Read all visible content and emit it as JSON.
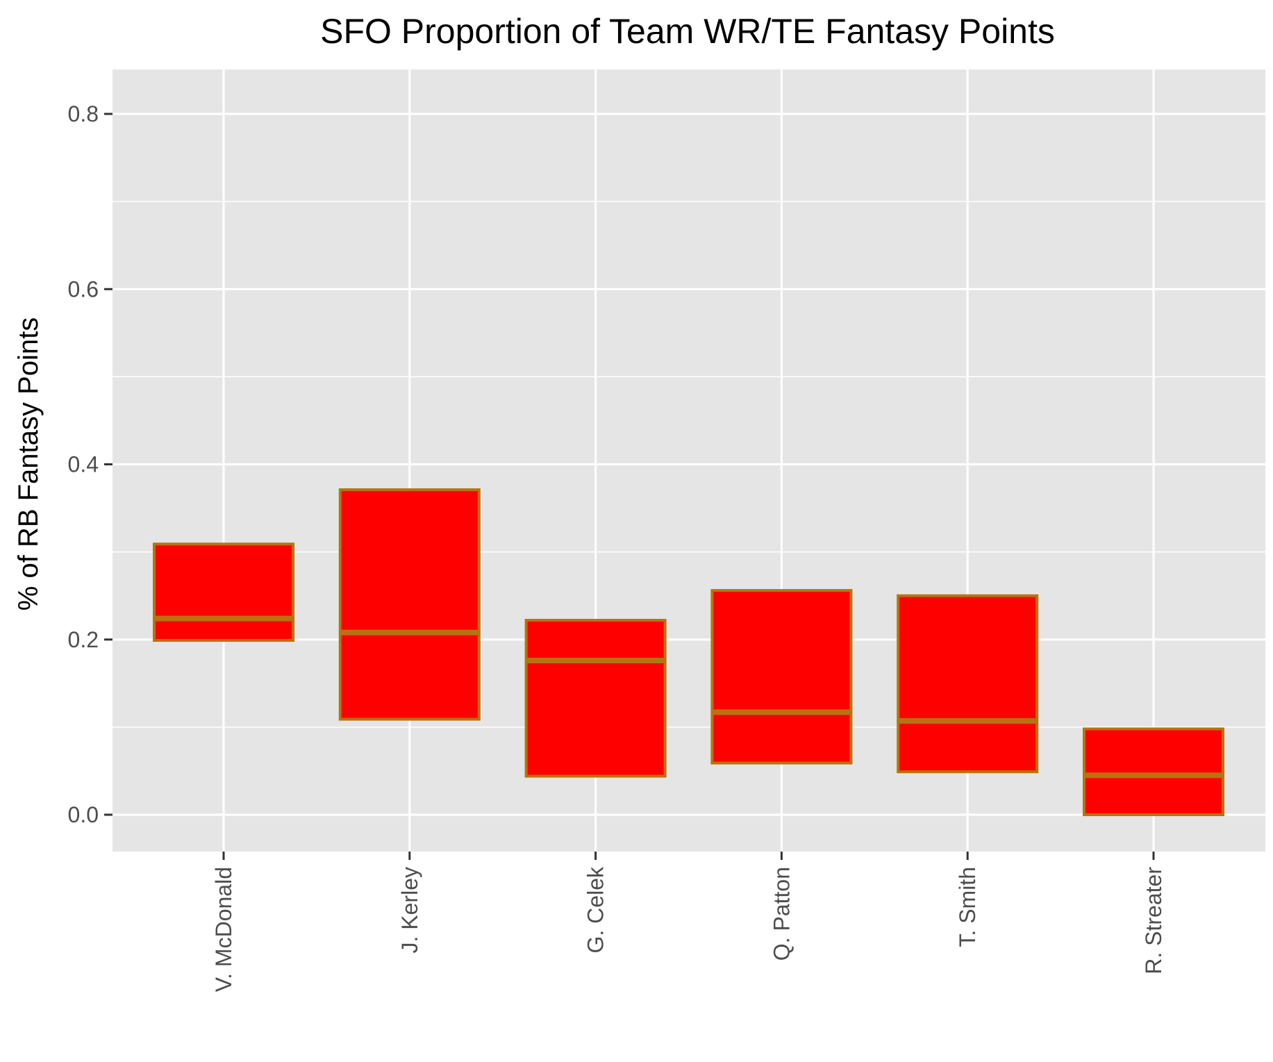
{
  "chart_data": {
    "type": "boxplot",
    "title": "SFO Proportion of Team WR/TE Fantasy Points",
    "xlabel": "",
    "ylabel": "% of RB Fantasy Points",
    "ylim": [
      -0.04,
      0.85
    ],
    "yticks": [
      0.0,
      0.2,
      0.4,
      0.6,
      0.8
    ],
    "ytick_labels": [
      "0.0",
      "0.2",
      "0.4",
      "0.6",
      "0.8"
    ],
    "grid": true,
    "categories": [
      "V. McDonald",
      "J. Kerley",
      "G. Celek",
      "Q. Patton",
      "T. Smith",
      "R. Streater"
    ],
    "boxes": [
      {
        "q1": 0.199,
        "median": 0.224,
        "q3": 0.309
      },
      {
        "q1": 0.109,
        "median": 0.208,
        "q3": 0.371
      },
      {
        "q1": 0.044,
        "median": 0.176,
        "q3": 0.222
      },
      {
        "q1": 0.059,
        "median": 0.117,
        "q3": 0.256
      },
      {
        "q1": 0.049,
        "median": 0.107,
        "q3": 0.25
      },
      {
        "q1": 0.0,
        "median": 0.045,
        "q3": 0.098
      }
    ],
    "colors": {
      "fill": "#ff0000",
      "outline": "#b8730f",
      "panel": "#e5e5e5",
      "grid": "#ffffff"
    }
  }
}
